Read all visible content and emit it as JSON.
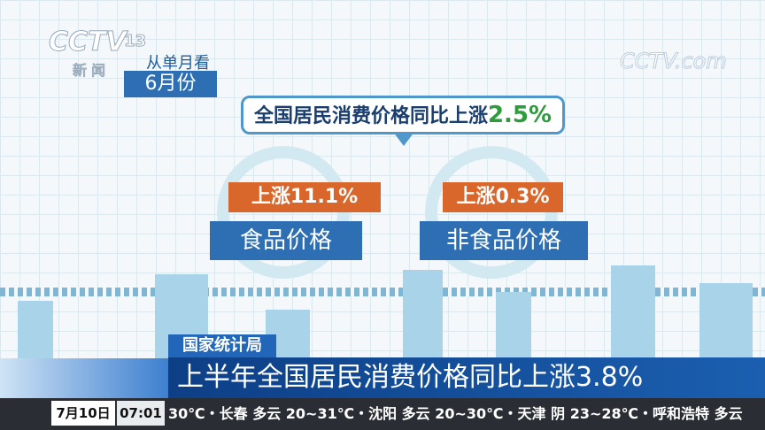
{
  "logo": {
    "channel": "CCTV",
    "number": "13",
    "subtitle": "新 闻",
    "watermark": "CCTV.com"
  },
  "header": {
    "caption": "从单月看",
    "period": "6月份"
  },
  "summary": {
    "text": "全国居民消费价格同比上涨",
    "value": "2.5%"
  },
  "items": [
    {
      "change": "上涨11.1%",
      "label": "食品价格"
    },
    {
      "change": "上涨0.3%",
      "label": "非食品价格"
    }
  ],
  "news": {
    "source": "国家统计局",
    "headline": "上半年全国居民消费价格同比上涨3.8%"
  },
  "ticker": {
    "date": "7月10日",
    "time": "07:01",
    "text": "30℃・长春 多云 20~31℃・沈阳 多云 20~30℃・天津 阴 23~28℃・呼和浩特 多云"
  }
}
